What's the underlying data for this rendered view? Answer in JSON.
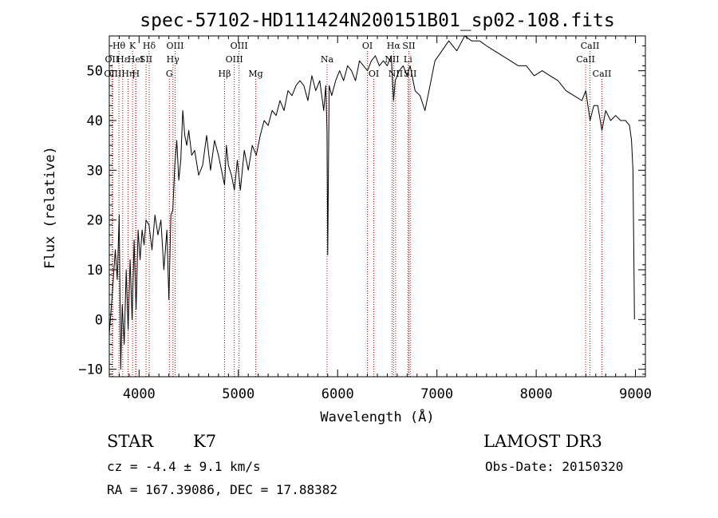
{
  "title": "spec-57102-HD111424N200151B01_sp02-108.fits",
  "info": {
    "class": "STAR",
    "subclass": "K7",
    "cz": "cz = -4.4 ± 9.1 km/s",
    "coords": "RA = 167.39086, DEC =  17.88382",
    "survey": "LAMOST DR3",
    "obsdate": "Obs-Date: 20150320"
  },
  "chart_data": {
    "type": "line",
    "xlabel": "Wavelength (Å)",
    "ylabel": "Flux (relative)",
    "xlim": [
      3700,
      9100
    ],
    "ylim": [
      -11.5,
      57
    ],
    "xticks": [
      4000,
      5000,
      6000,
      7000,
      8000,
      9000
    ],
    "yticks": [
      -10,
      0,
      10,
      20,
      30,
      40,
      50
    ],
    "line_color": "#000000",
    "marker_color": "#c00000",
    "spectral_lines": [
      {
        "label": "Hθ",
        "x": 3797,
        "row": 0
      },
      {
        "label": "OII",
        "x": 3727,
        "row": 1
      },
      {
        "label": "OIII",
        "x": 3735,
        "row": 2
      },
      {
        "label": "Hε",
        "x": 3835,
        "row": 1
      },
      {
        "label": "Hη",
        "x": 3889,
        "row": 2
      },
      {
        "label": "K",
        "x": 3934,
        "row": 0
      },
      {
        "label": "HeI",
        "x": 3965,
        "row": 1
      },
      {
        "label": "H",
        "x": 3968,
        "row": 2
      },
      {
        "label": "Hδ",
        "x": 4102,
        "row": 0
      },
      {
        "label": "SII",
        "x": 4070,
        "row": 1
      },
      {
        "label": "OIII",
        "x": 4363,
        "row": 0
      },
      {
        "label": "Hγ",
        "x": 4341,
        "row": 1
      },
      {
        "label": "G",
        "x": 4305,
        "row": 2
      },
      {
        "label": "Hβ",
        "x": 4861,
        "row": 2
      },
      {
        "label": "OIII",
        "x": 5007,
        "row": 0
      },
      {
        "label": "OIII",
        "x": 4959,
        "row": 1
      },
      {
        "label": "Mg",
        "x": 5175,
        "row": 2
      },
      {
        "label": "Na",
        "x": 5893,
        "row": 1
      },
      {
        "label": "OI",
        "x": 6300,
        "row": 0
      },
      {
        "label": "OI",
        "x": 6364,
        "row": 2
      },
      {
        "label": "Hα",
        "x": 6563,
        "row": 0
      },
      {
        "label": "NII",
        "x": 6548,
        "row": 1
      },
      {
        "label": "NII",
        "x": 6584,
        "row": 2
      },
      {
        "label": "SII",
        "x": 6717,
        "row": 0
      },
      {
        "label": "Li",
        "x": 6708,
        "row": 1
      },
      {
        "label": "SII",
        "x": 6731,
        "row": 2
      },
      {
        "label": "CaII",
        "x": 8542,
        "row": 0
      },
      {
        "label": "CaII",
        "x": 8498,
        "row": 1
      },
      {
        "label": "CaII",
        "x": 8662,
        "row": 2
      }
    ],
    "series": [
      {
        "x": [
          3700,
          3730,
          3760,
          3780,
          3800,
          3815,
          3830,
          3850,
          3870,
          3890,
          3910,
          3930,
          3950,
          3970,
          3990,
          4010,
          4030,
          4050,
          4070,
          4100,
          4130,
          4160,
          4190,
          4220,
          4250,
          4280,
          4300,
          4320,
          4340,
          4360,
          4380,
          4400,
          4420,
          4440,
          4460,
          4480,
          4500,
          4530,
          4560,
          4600,
          4640,
          4680,
          4720,
          4760,
          4800,
          4840,
          4861,
          4880,
          4900,
          4930,
          4960,
          4990,
          5020,
          5060,
          5100,
          5140,
          5180,
          5220,
          5260,
          5300,
          5340,
          5380,
          5420,
          5460,
          5500,
          5540,
          5580,
          5620,
          5660,
          5700,
          5740,
          5780,
          5820,
          5860,
          5880,
          5893,
          5900,
          5915,
          5940,
          5980,
          6020,
          6060,
          6100,
          6140,
          6180,
          6220,
          6260,
          6300,
          6340,
          6380,
          6420,
          6460,
          6500,
          6540,
          6563,
          6580,
          6620,
          6660,
          6700,
          6730,
          6780,
          6830,
          6880,
          6930,
          6980,
          7050,
          7120,
          7200,
          7280,
          7350,
          7430,
          7500,
          7580,
          7660,
          7740,
          7820,
          7900,
          7980,
          8060,
          8140,
          8220,
          8300,
          8380,
          8460,
          8500,
          8542,
          8580,
          8620,
          8662,
          8700,
          8750,
          8800,
          8850,
          8900,
          8940,
          8960,
          8975,
          8985,
          8990
        ],
        "y": [
          -3,
          5,
          14,
          8,
          21,
          -10,
          3,
          -5,
          10,
          -2,
          12,
          0,
          16,
          2,
          18,
          12,
          18,
          15,
          20,
          19,
          14,
          21,
          17,
          20,
          10,
          18,
          4,
          21,
          22,
          31,
          36,
          28,
          32,
          42,
          37,
          35,
          38,
          33,
          34,
          29,
          31,
          37,
          30,
          36,
          33,
          29,
          27,
          35,
          31,
          29,
          26,
          32,
          26,
          34,
          30,
          35,
          33,
          37,
          40,
          39,
          42,
          41,
          44,
          42,
          46,
          45,
          47,
          48,
          47,
          44,
          49,
          46,
          48,
          42,
          47,
          38,
          13,
          47,
          45,
          48,
          50,
          48,
          51,
          50,
          48,
          52,
          51,
          50,
          52,
          53,
          51,
          52,
          51,
          53,
          44,
          48,
          50,
          51,
          49,
          51,
          46,
          45,
          42,
          47,
          52,
          54,
          56,
          54,
          57,
          56,
          56,
          55,
          54,
          53,
          52,
          51,
          51,
          49,
          50,
          49,
          48,
          46,
          45,
          44,
          46,
          40,
          43,
          43,
          38,
          42,
          40,
          41,
          40,
          40,
          39,
          36,
          30,
          10,
          0
        ]
      }
    ]
  }
}
